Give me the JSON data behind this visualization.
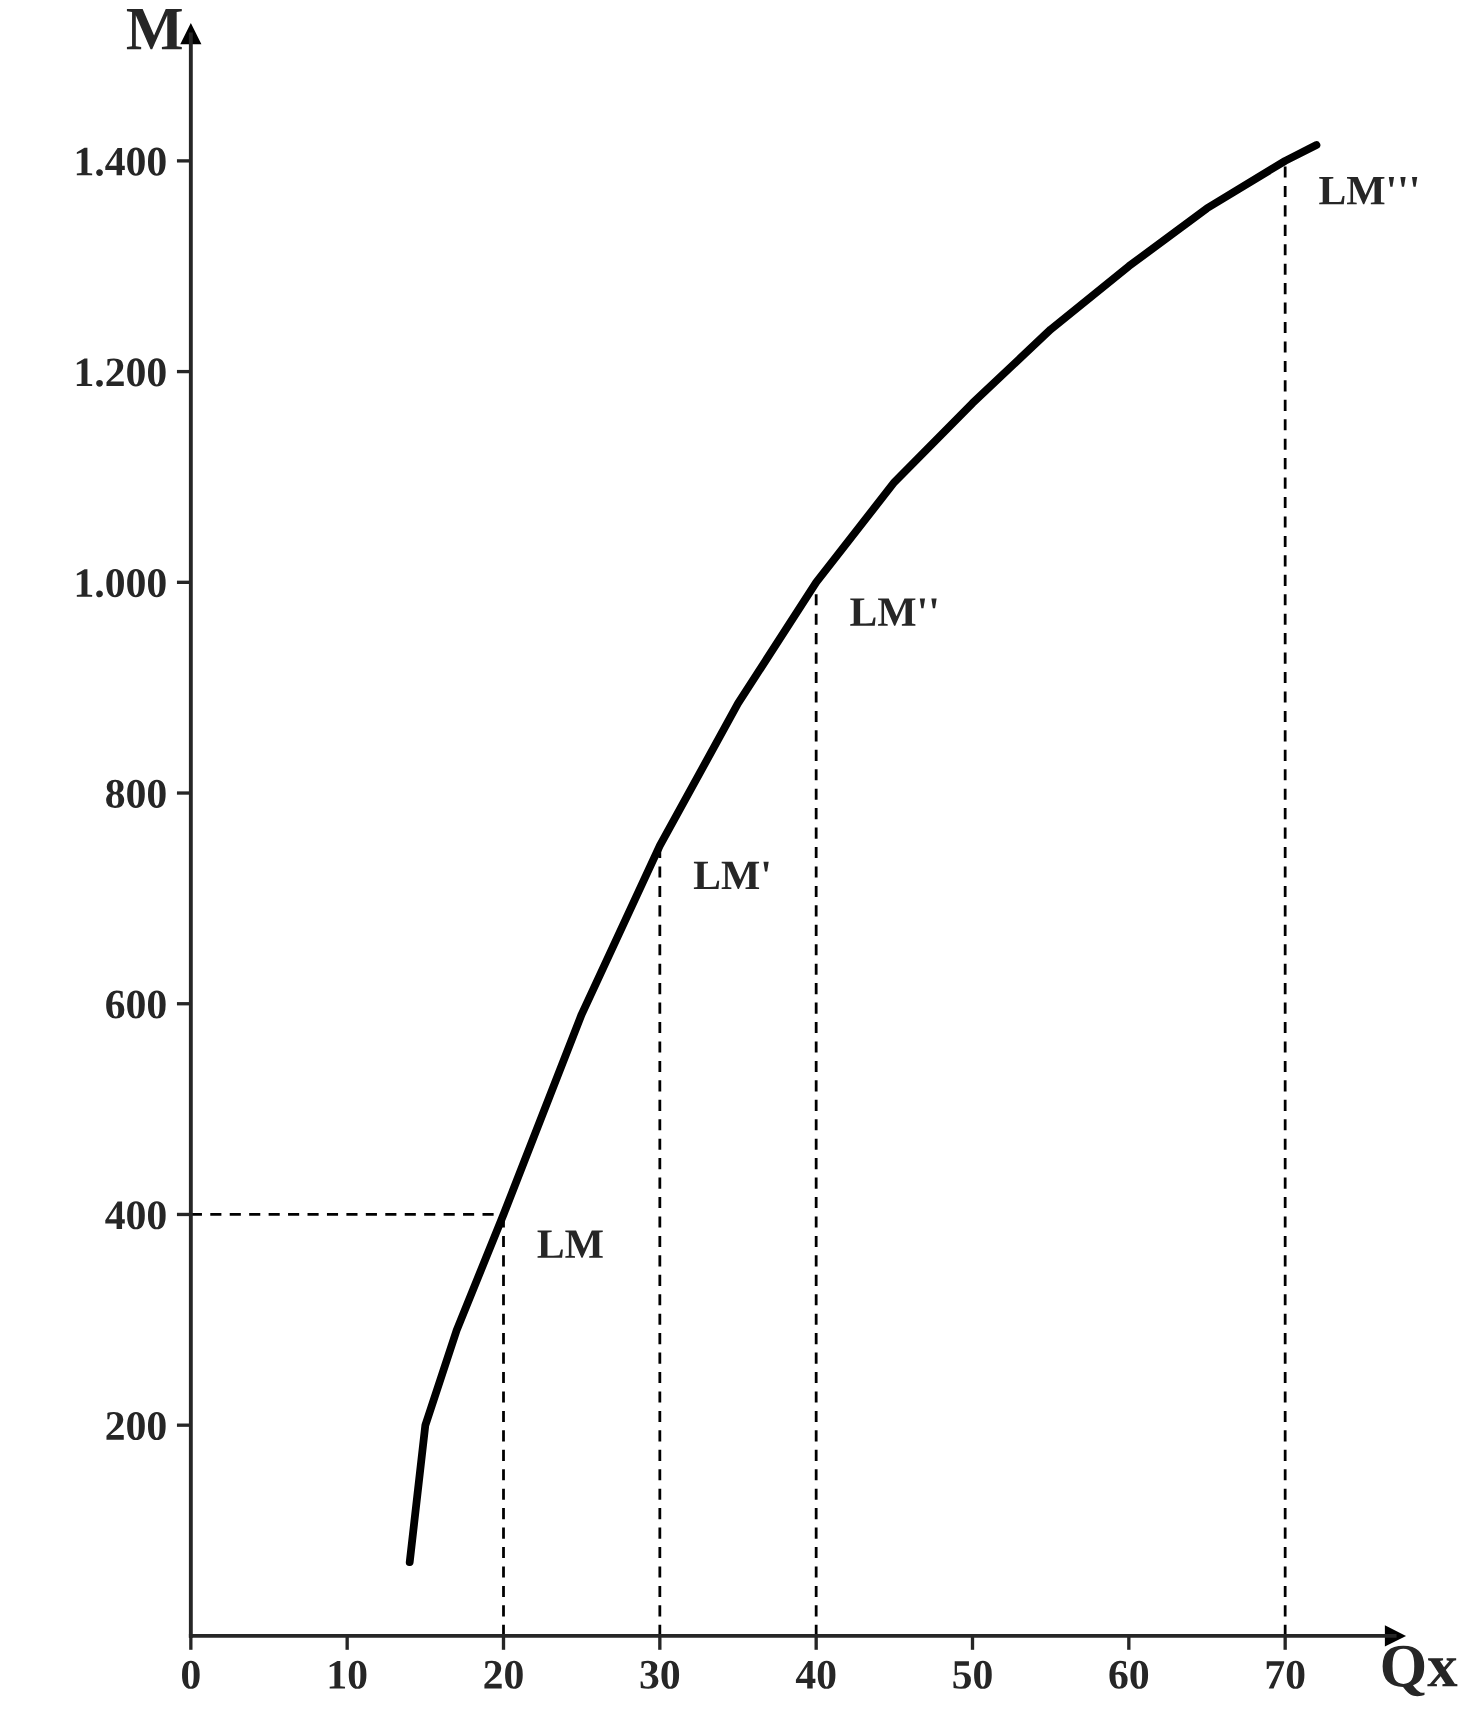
{
  "chart_data": {
    "type": "line",
    "xlabel": "Qx",
    "ylabel": "M",
    "xlim": [
      0,
      77
    ],
    "ylim": [
      0,
      1520
    ],
    "xticks": [
      0,
      10,
      20,
      30,
      40,
      50,
      60,
      70
    ],
    "yticks": [
      {
        "value": 200,
        "label": "200"
      },
      {
        "value": 400,
        "label": "400"
      },
      {
        "value": 600,
        "label": "600"
      },
      {
        "value": 800,
        "label": "800"
      },
      {
        "value": 1000,
        "label": "1.000"
      },
      {
        "value": 1200,
        "label": "1.200"
      },
      {
        "value": 1400,
        "label": "1.400"
      }
    ],
    "grid": false,
    "legend": false,
    "series": [
      {
        "color": "#000000",
        "line_style": "solid",
        "x": [
          14,
          15,
          17,
          20,
          25,
          30,
          35,
          40,
          45,
          50,
          55,
          60,
          65,
          70,
          72
        ],
        "values": [
          70,
          200,
          290,
          400,
          590,
          750,
          885,
          1000,
          1095,
          1170,
          1240,
          1300,
          1355,
          1400,
          1415
        ]
      },
      {
        "color": "#000000",
        "line_style": "dashed",
        "x": [
          0,
          20
        ],
        "values": [
          400,
          400
        ]
      },
      {
        "color": "#000000",
        "line_style": "dashed",
        "x": [
          20,
          20
        ],
        "values": [
          0,
          400
        ]
      },
      {
        "color": "#000000",
        "line_style": "dashed",
        "x": [
          30,
          30
        ],
        "values": [
          0,
          750
        ]
      },
      {
        "color": "#000000",
        "line_style": "dashed",
        "x": [
          40,
          40
        ],
        "values": [
          0,
          1000
        ]
      },
      {
        "color": "#000000",
        "line_style": "dashed",
        "x": [
          70,
          70
        ],
        "values": [
          0,
          1400
        ]
      }
    ],
    "annotations": [
      {
        "text": "LM",
        "x": 20,
        "y": 400
      },
      {
        "text": "LM'",
        "x": 30,
        "y": 750
      },
      {
        "text": "LM''",
        "x": 40,
        "y": 1000
      },
      {
        "text": "LM'''",
        "x": 70,
        "y": 1400
      }
    ]
  }
}
